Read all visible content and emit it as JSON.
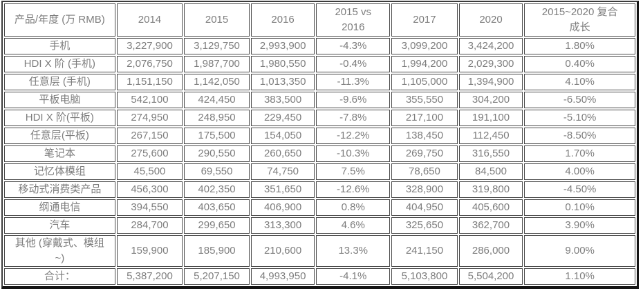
{
  "colors": {
    "text": "#7d7d7d",
    "cell_border": "#4a4a4a",
    "outer_border_dark": "#141414",
    "background": "#ffffff"
  },
  "table": {
    "unit_note": "万 RMB",
    "header": [
      "产品/年度 (万 RMB)",
      "2014",
      "2015",
      "2016",
      "2015 vs\n2016",
      "2017",
      "2020",
      "2015~2020 复合\n成长"
    ],
    "rows": [
      {
        "label": "手机",
        "values": [
          "3,227,900",
          "3,129,750",
          "2,993,900",
          "-4.3%",
          "3,099,200",
          "3,424,200",
          "1.80%"
        ]
      },
      {
        "label": "HDI X 阶 (手机)",
        "values": [
          "2,076,750",
          "1,987,700",
          "1,980,550",
          "-0.4%",
          "1,994,200",
          "2,029,300",
          "0.40%"
        ]
      },
      {
        "label": "任意层 (手机)",
        "values": [
          "1,151,150",
          "1,142,050",
          "1,013,350",
          "-11.3%",
          "1,105,000",
          "1,394,900",
          "4.10%"
        ]
      },
      {
        "label": "平板电脑",
        "values": [
          "542,100",
          "424,450",
          "383,500",
          "-9.6%",
          "355,550",
          "304,200",
          "-6.50%"
        ]
      },
      {
        "label": "HDI X 阶(平板)",
        "values": [
          "274,950",
          "248,950",
          "229,450",
          "-7.8%",
          "217,100",
          "191,100",
          "-5.10%"
        ]
      },
      {
        "label": "任意层(平板)",
        "values": [
          "267,150",
          "175,500",
          "154,050",
          "-12.2%",
          "138,450",
          "112,450",
          "-8.50%"
        ]
      },
      {
        "label": "笔记本",
        "values": [
          "275,600",
          "290,550",
          "260,650",
          "-10.3%",
          "269,750",
          "316,550",
          "1.70%"
        ]
      },
      {
        "label": "记忆体模组",
        "values": [
          "45,500",
          "69,550",
          "74,750",
          "7.5%",
          "78,650",
          "84,500",
          "4.00%"
        ]
      },
      {
        "label": "移动式消费类产品",
        "values": [
          "456,300",
          "402,350",
          "351,650",
          "-12.6%",
          "328,900",
          "319,800",
          "-4.50%"
        ]
      },
      {
        "label": "纲通电信",
        "values": [
          "394,550",
          "403,650",
          "406,900",
          "0.8%",
          "404,950",
          "405,600",
          "0.10%"
        ]
      },
      {
        "label": "汽车",
        "values": [
          "284,700",
          "299,650",
          "313,300",
          "4.6%",
          "325,650",
          "362,700",
          "3.90%"
        ]
      },
      {
        "label": "其他 (穿戴式、模组\n~)",
        "values": [
          "159,900",
          "185,900",
          "210,600",
          "13.3%",
          "241,150",
          "286,000",
          "9.00%"
        ]
      },
      {
        "label": "合计：",
        "values": [
          "5,387,200",
          "5,207,150",
          "4,993,950",
          "-4.1%",
          "5,103,800",
          "5,504,200",
          "1.10%"
        ]
      }
    ]
  }
}
